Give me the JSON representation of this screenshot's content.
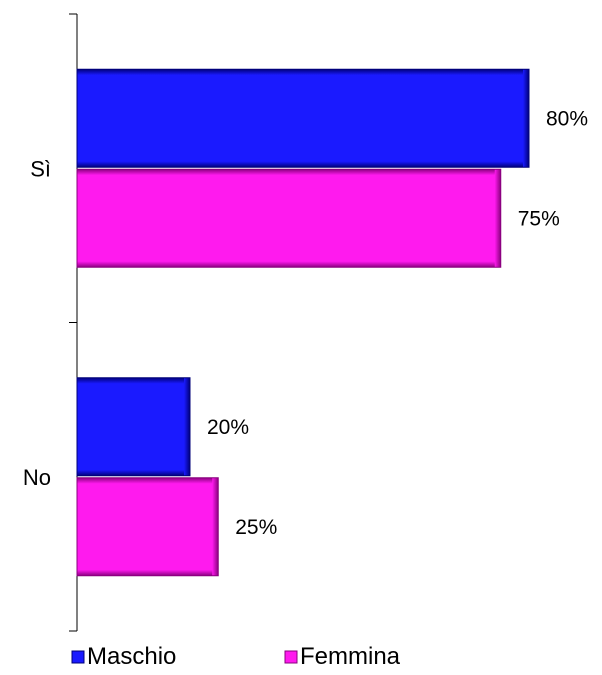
{
  "chart_data": {
    "type": "bar",
    "orientation": "horizontal",
    "categories": [
      "Sì",
      "No"
    ],
    "series": [
      {
        "name": "Maschio",
        "values": [
          80,
          20
        ],
        "labels": [
          "80%",
          "20%"
        ],
        "color": "#1a1aff",
        "edge_color": "#00007a"
      },
      {
        "name": "Femmina",
        "values": [
          75,
          25
        ],
        "labels": [
          "75%",
          "25%"
        ],
        "color": "#ff1aee",
        "edge_color": "#8a007f"
      }
    ],
    "unit": "%",
    "xlim": [
      0,
      100
    ],
    "grid": false,
    "legend": "bottom"
  }
}
